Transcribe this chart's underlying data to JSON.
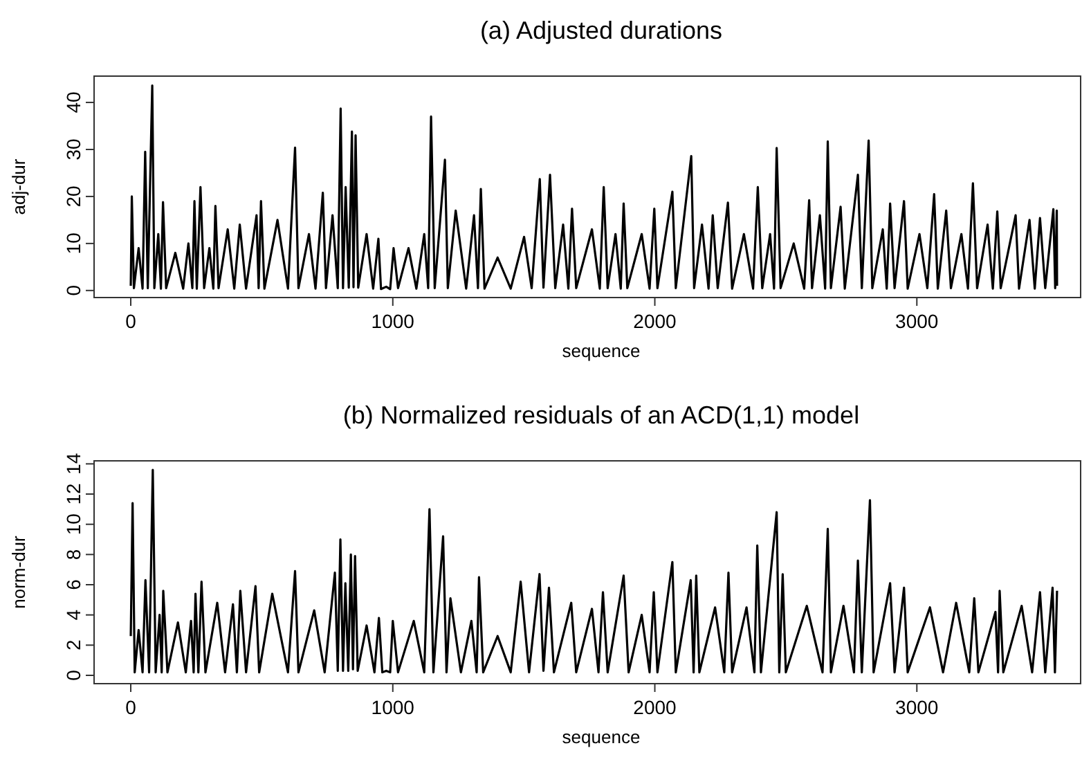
{
  "chart_data": [
    {
      "type": "line",
      "title": "(a) Adjusted durations",
      "xlabel": "sequence",
      "ylabel": "adj-dur",
      "xlim": [
        -140,
        3625
      ],
      "xticks": [
        0,
        1000,
        2000,
        3000
      ],
      "ylim": [
        -1.5,
        45.6
      ],
      "yticks": [
        0,
        10,
        20,
        30,
        40
      ],
      "series": [
        {
          "color": "#000000",
          "x": [
            0,
            4,
            12,
            30,
            45,
            55,
            65,
            82,
            90,
            105,
            115,
            123,
            135,
            170,
            200,
            220,
            235,
            243,
            252,
            266,
            280,
            300,
            315,
            323,
            335,
            370,
            395,
            416,
            440,
            480,
            488,
            497,
            510,
            560,
            600,
            627,
            640,
            680,
            705,
            733,
            745,
            770,
            790,
            801,
            810,
            820,
            832,
            844,
            850,
            858,
            868,
            900,
            925,
            945,
            955,
            975,
            990,
            1003,
            1020,
            1060,
            1090,
            1120,
            1135,
            1146,
            1160,
            1199,
            1210,
            1240,
            1280,
            1310,
            1325,
            1336,
            1350,
            1400,
            1450,
            1501,
            1530,
            1561,
            1575,
            1600,
            1620,
            1650,
            1670,
            1684,
            1700,
            1760,
            1790,
            1805,
            1820,
            1850,
            1870,
            1881,
            1895,
            1950,
            1980,
            1998,
            2010,
            2067,
            2080,
            2139,
            2150,
            2180,
            2205,
            2221,
            2240,
            2279,
            2295,
            2340,
            2375,
            2393,
            2410,
            2440,
            2455,
            2465,
            2480,
            2530,
            2570,
            2589,
            2600,
            2630,
            2650,
            2660,
            2672,
            2709,
            2725,
            2775,
            2790,
            2816,
            2830,
            2870,
            2885,
            2898,
            2915,
            2951,
            2965,
            3010,
            3040,
            3066,
            3080,
            3112,
            3130,
            3170,
            3195,
            3214,
            3230,
            3270,
            3290,
            3307,
            3320,
            3377,
            3390,
            3430,
            3450,
            3470,
            3490,
            3521,
            3528,
            3534,
            3535
          ],
          "values": [
            1,
            20,
            0.5,
            9,
            0.4,
            29.5,
            0.5,
            43.6,
            0.5,
            12,
            0.4,
            18.8,
            0.5,
            8,
            0.4,
            10,
            0.5,
            19,
            0.4,
            22,
            0.5,
            9,
            0.4,
            18,
            0.5,
            13,
            0.4,
            14,
            0.4,
            16,
            0.5,
            19,
            0.4,
            15,
            0.4,
            30.4,
            0.5,
            12,
            0.4,
            20.8,
            0.5,
            16,
            0.5,
            38.7,
            0.5,
            22,
            0.6,
            33.8,
            0.7,
            33,
            0.6,
            12,
            0.4,
            11,
            0.3,
            0.8,
            0.3,
            9,
            0.5,
            9,
            0.4,
            12,
            0.5,
            37,
            0.5,
            27.8,
            0.5,
            17,
            0.4,
            16,
            0.5,
            21.6,
            0.4,
            7,
            0.4,
            11.4,
            0.5,
            23.7,
            0.6,
            24.6,
            0.5,
            14,
            0.4,
            17.4,
            0.5,
            13,
            0.4,
            22,
            0.5,
            12,
            0.4,
            18.5,
            0.5,
            12,
            0.4,
            17.4,
            0.5,
            21,
            0.5,
            28.6,
            0.5,
            14,
            0.4,
            16,
            0.5,
            18.7,
            0.4,
            12,
            0.4,
            22,
            0.5,
            12,
            0.4,
            30.3,
            0.5,
            10,
            0.4,
            19.2,
            0.5,
            16,
            0.4,
            31.7,
            0.5,
            17.8,
            0.4,
            24.6,
            0.5,
            31.9,
            0.5,
            13,
            0.4,
            18.5,
            0.5,
            19,
            0.4,
            12,
            0.5,
            20.5,
            0.4,
            17,
            0.5,
            12,
            0.4,
            22.8,
            0.5,
            14,
            0.4,
            16.8,
            0.5,
            16,
            0.4,
            15,
            0.4,
            15.4,
            0.5,
            17.3,
            0.5,
            17,
            1
          ]
        }
      ]
    },
    {
      "type": "line",
      "title": "(b) Normalized residuals of an ACD(1,1) model",
      "xlabel": "sequence",
      "ylabel": "norm-dur",
      "xlim": [
        -140,
        3625
      ],
      "xticks": [
        0,
        1000,
        2000,
        3000
      ],
      "ylim": [
        -0.55,
        14.2
      ],
      "yticks": [
        0,
        2,
        4,
        6,
        8,
        10,
        12,
        14
      ],
      "series": [
        {
          "color": "#000000",
          "x": [
            0,
            7,
            15,
            30,
            45,
            56,
            70,
            84,
            95,
            110,
            118,
            124,
            140,
            180,
            210,
            230,
            240,
            247,
            258,
            270,
            285,
            330,
            360,
            390,
            405,
            418,
            440,
            476,
            490,
            540,
            600,
            627,
            640,
            700,
            740,
            779,
            790,
            800,
            810,
            819,
            830,
            840,
            848,
            856,
            866,
            900,
            930,
            947,
            960,
            975,
            990,
            1000,
            1020,
            1080,
            1120,
            1140,
            1155,
            1192,
            1205,
            1220,
            1260,
            1300,
            1320,
            1329,
            1345,
            1400,
            1450,
            1488,
            1520,
            1560,
            1575,
            1596,
            1615,
            1681,
            1700,
            1760,
            1785,
            1802,
            1820,
            1881,
            1900,
            1950,
            1980,
            1996,
            2010,
            2067,
            2080,
            2137,
            2148,
            2158,
            2170,
            2230,
            2265,
            2281,
            2295,
            2350,
            2380,
            2391,
            2405,
            2465,
            2475,
            2488,
            2500,
            2580,
            2640,
            2660,
            2672,
            2720,
            2760,
            2775,
            2790,
            2821,
            2835,
            2898,
            2915,
            2951,
            2965,
            3050,
            3100,
            3150,
            3200,
            3219,
            3235,
            3300,
            3310,
            3316,
            3330,
            3400,
            3440,
            3470,
            3490,
            3518,
            3527,
            3535
          ],
          "values": [
            2.6,
            11.4,
            0.2,
            3,
            0.2,
            6.3,
            0.2,
            13.6,
            0.2,
            4,
            0.2,
            5.6,
            0.2,
            3.5,
            0.2,
            3.6,
            0.2,
            5.4,
            0.2,
            6.2,
            0.2,
            4.8,
            0.2,
            4.7,
            0.2,
            5.6,
            0.2,
            5.9,
            0.2,
            5.4,
            0.2,
            6.9,
            0.2,
            4.3,
            0.2,
            6.8,
            0.3,
            9,
            0.3,
            6.1,
            0.3,
            8,
            0.4,
            7.9,
            0.3,
            3.3,
            0.2,
            3.8,
            0.2,
            0.3,
            0.2,
            3.6,
            0.2,
            3.6,
            0.2,
            11,
            0.2,
            9.2,
            0.2,
            5.1,
            0.2,
            3.6,
            0.2,
            6.5,
            0.2,
            2.6,
            0.2,
            6.2,
            0.2,
            6.7,
            0.3,
            5.8,
            0.2,
            4.8,
            0.2,
            4.4,
            0.2,
            5.5,
            0.2,
            6.6,
            0.2,
            4,
            0.2,
            5.5,
            0.2,
            7.5,
            0.2,
            6.3,
            0.2,
            6.6,
            0.2,
            4.5,
            0.2,
            6.8,
            0.2,
            4.5,
            0.2,
            8.6,
            0.2,
            10.8,
            0.2,
            6.7,
            0.2,
            4.6,
            0.2,
            9.7,
            0.2,
            4.6,
            0.2,
            7.6,
            0.2,
            11.6,
            0.2,
            6.1,
            0.2,
            5.8,
            0.2,
            4.5,
            0.2,
            4.8,
            0.2,
            5.1,
            0.2,
            4.2,
            0.2,
            5.6,
            0.2,
            4.6,
            0.2,
            5.5,
            0.2,
            5.8,
            0.2,
            5.6
          ]
        }
      ]
    }
  ]
}
